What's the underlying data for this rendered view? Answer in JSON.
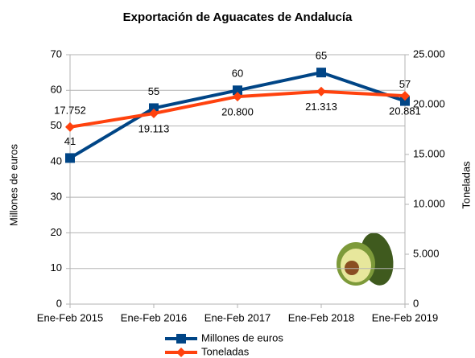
{
  "chart_data": {
    "type": "line",
    "title": "Exportación de Aguacates de Andalucía",
    "y_label": "Millones de euros",
    "y2_label": "Toneladas",
    "categories": [
      "Ene-Feb 2015",
      "Ene-Feb 2016",
      "Ene-Feb 2017",
      "Ene-Feb 2018",
      "Ene-Feb 2019"
    ],
    "series": [
      {
        "name": "Millones de euros",
        "color": "#004586",
        "marker": "square",
        "values": [
          41,
          55,
          60,
          65,
          57
        ]
      },
      {
        "name": "Toneladas",
        "color": "#ff420e",
        "marker": "diamond",
        "axis": "y2",
        "values": [
          17752,
          19113,
          20800,
          21313,
          20881
        ],
        "value_labels": [
          "17.752",
          "19.113",
          "20.800",
          "21.313",
          "20.881"
        ]
      }
    ],
    "ylim": [
      0,
      70
    ],
    "yticks": [
      0,
      10,
      20,
      30,
      40,
      50,
      60,
      70
    ],
    "y2lim": [
      0,
      25000
    ],
    "y2ticks": [
      0,
      {
        "value": 5000,
        "label": "5.000"
      },
      {
        "value": 10000,
        "label": "10.000"
      },
      {
        "value": 15000,
        "label": "15.000"
      },
      {
        "value": 20000,
        "label": "20.000"
      },
      {
        "value": 25000,
        "label": "25.000"
      }
    ],
    "grid": true,
    "legend": "bottom"
  }
}
